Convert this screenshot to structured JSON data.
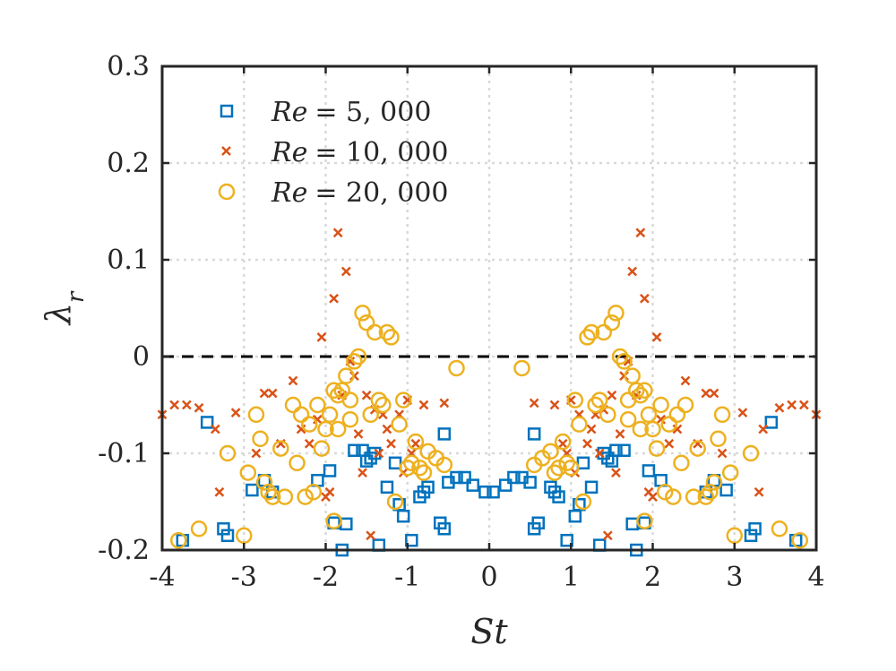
{
  "chart_data": {
    "type": "scatter",
    "title": "",
    "xlabel": "St",
    "ylabel_symbol": "λ",
    "ylabel_subscript": "r",
    "xlim": [
      -4,
      4
    ],
    "ylim": [
      -0.2,
      0.3
    ],
    "x_ticks": [
      -4,
      -3,
      -2,
      -1,
      0,
      1,
      2,
      3,
      4
    ],
    "x_tick_labels": [
      "-4",
      "-3",
      "-2",
      "-1",
      "0",
      "1",
      "2",
      "3",
      "4"
    ],
    "y_ticks": [
      -0.2,
      -0.1,
      0,
      0.1,
      0.2,
      0.3
    ],
    "y_tick_labels": [
      "-0.2",
      "-0.1",
      "0",
      "0.1",
      "0.2",
      "0.3"
    ],
    "grid": true,
    "reference_line": {
      "y": 0,
      "style": "dashed",
      "color": "#000000"
    },
    "legend_position": "top-left",
    "series": [
      {
        "name": "Re = 5,000",
        "legend_prefix": "Re",
        "legend_value": "= 5, 000",
        "marker": "square",
        "color": "#0072BD",
        "points": [
          [
            -3.75,
            -0.19
          ],
          [
            -3.45,
            -0.068
          ],
          [
            -3.25,
            -0.178
          ],
          [
            -3.2,
            -0.185
          ],
          [
            -2.9,
            -0.138
          ],
          [
            -2.75,
            -0.128
          ],
          [
            -2.65,
            -0.14
          ],
          [
            -2.1,
            -0.128
          ],
          [
            -1.95,
            -0.118
          ],
          [
            -1.9,
            -0.172
          ],
          [
            -1.8,
            -0.2
          ],
          [
            -1.75,
            -0.173
          ],
          [
            -1.65,
            -0.097
          ],
          [
            -1.55,
            -0.097
          ],
          [
            -1.5,
            -0.108
          ],
          [
            -1.45,
            -0.105
          ],
          [
            -1.4,
            -0.1
          ],
          [
            -1.35,
            -0.195
          ],
          [
            -1.25,
            -0.135
          ],
          [
            -1.15,
            -0.11
          ],
          [
            -1.1,
            -0.153
          ],
          [
            -1.05,
            -0.165
          ],
          [
            -0.95,
            -0.19
          ],
          [
            -0.85,
            -0.145
          ],
          [
            -0.8,
            -0.14
          ],
          [
            -0.75,
            -0.135
          ],
          [
            -0.6,
            -0.172
          ],
          [
            -0.55,
            -0.178
          ],
          [
            -0.5,
            -0.13
          ],
          [
            -0.4,
            -0.125
          ],
          [
            -0.3,
            -0.125
          ],
          [
            -0.2,
            -0.133
          ],
          [
            -0.05,
            -0.14
          ],
          [
            0.05,
            -0.14
          ],
          [
            0.2,
            -0.133
          ],
          [
            0.3,
            -0.125
          ],
          [
            0.4,
            -0.125
          ],
          [
            0.5,
            -0.13
          ],
          [
            0.55,
            -0.178
          ],
          [
            0.6,
            -0.172
          ],
          [
            0.75,
            -0.135
          ],
          [
            0.8,
            -0.14
          ],
          [
            0.85,
            -0.145
          ],
          [
            0.95,
            -0.19
          ],
          [
            1.05,
            -0.165
          ],
          [
            1.1,
            -0.153
          ],
          [
            1.15,
            -0.11
          ],
          [
            1.25,
            -0.135
          ],
          [
            1.35,
            -0.195
          ],
          [
            1.4,
            -0.1
          ],
          [
            1.45,
            -0.105
          ],
          [
            1.5,
            -0.108
          ],
          [
            1.55,
            -0.097
          ],
          [
            1.65,
            -0.097
          ],
          [
            1.75,
            -0.173
          ],
          [
            1.8,
            -0.2
          ],
          [
            1.9,
            -0.172
          ],
          [
            1.95,
            -0.118
          ],
          [
            2.1,
            -0.128
          ],
          [
            2.65,
            -0.14
          ],
          [
            2.75,
            -0.128
          ],
          [
            2.9,
            -0.138
          ],
          [
            3.2,
            -0.185
          ],
          [
            3.25,
            -0.178
          ],
          [
            3.45,
            -0.068
          ],
          [
            3.75,
            -0.19
          ],
          [
            -0.55,
            -0.08
          ],
          [
            0.55,
            -0.08
          ]
        ]
      },
      {
        "name": "Re = 10,000",
        "legend_prefix": "Re",
        "legend_value": "= 10, 000",
        "marker": "x",
        "color": "#D95319",
        "points": [
          [
            -4.0,
            -0.06
          ],
          [
            -3.85,
            -0.05
          ],
          [
            -3.7,
            -0.05
          ],
          [
            -3.55,
            -0.053
          ],
          [
            -3.35,
            -0.075
          ],
          [
            -3.3,
            -0.14
          ],
          [
            -3.1,
            -0.058
          ],
          [
            -2.85,
            -0.1
          ],
          [
            -2.75,
            -0.038
          ],
          [
            -2.65,
            -0.038
          ],
          [
            -2.55,
            -0.09
          ],
          [
            -2.4,
            -0.025
          ],
          [
            -2.3,
            -0.075
          ],
          [
            -2.2,
            -0.09
          ],
          [
            -2.1,
            -0.065
          ],
          [
            -2.05,
            0.02
          ],
          [
            -2.0,
            -0.145
          ],
          [
            -1.95,
            -0.14
          ],
          [
            -1.9,
            0.06
          ],
          [
            -1.85,
            0.128
          ],
          [
            -1.8,
            -0.04
          ],
          [
            -1.75,
            0.088
          ],
          [
            -1.7,
            -0.005
          ],
          [
            -1.65,
            -0.02
          ],
          [
            -1.6,
            -0.08
          ],
          [
            -1.55,
            -0.12
          ],
          [
            -1.5,
            -0.04
          ],
          [
            -1.45,
            -0.185
          ],
          [
            -1.4,
            -0.055
          ],
          [
            -1.35,
            -0.1
          ],
          [
            -1.3,
            -0.06
          ],
          [
            -1.25,
            -0.075
          ],
          [
            -1.2,
            -0.09
          ],
          [
            -1.1,
            -0.06
          ],
          [
            -1.05,
            -0.12
          ],
          [
            -1.0,
            -0.045
          ],
          [
            -0.95,
            -0.1
          ],
          [
            -0.9,
            -0.09
          ],
          [
            -0.8,
            -0.05
          ],
          [
            -0.55,
            -0.048
          ],
          [
            4.0,
            -0.06
          ],
          [
            3.85,
            -0.05
          ],
          [
            3.7,
            -0.05
          ],
          [
            3.55,
            -0.053
          ],
          [
            3.35,
            -0.075
          ],
          [
            3.3,
            -0.14
          ],
          [
            3.1,
            -0.058
          ],
          [
            2.85,
            -0.1
          ],
          [
            2.75,
            -0.038
          ],
          [
            2.65,
            -0.038
          ],
          [
            2.55,
            -0.09
          ],
          [
            2.4,
            -0.025
          ],
          [
            2.3,
            -0.075
          ],
          [
            2.2,
            -0.09
          ],
          [
            2.1,
            -0.065
          ],
          [
            2.05,
            0.02
          ],
          [
            2.0,
            -0.145
          ],
          [
            1.95,
            -0.14
          ],
          [
            1.9,
            0.06
          ],
          [
            1.85,
            0.128
          ],
          [
            1.8,
            -0.04
          ],
          [
            1.75,
            0.088
          ],
          [
            1.7,
            -0.005
          ],
          [
            1.65,
            -0.02
          ],
          [
            1.6,
            -0.08
          ],
          [
            1.55,
            -0.12
          ],
          [
            1.5,
            -0.04
          ],
          [
            1.45,
            -0.185
          ],
          [
            1.4,
            -0.055
          ],
          [
            1.35,
            -0.1
          ],
          [
            1.3,
            -0.06
          ],
          [
            1.25,
            -0.075
          ],
          [
            1.2,
            -0.09
          ],
          [
            1.1,
            -0.06
          ],
          [
            1.05,
            -0.12
          ],
          [
            1.0,
            -0.045
          ],
          [
            0.95,
            -0.1
          ],
          [
            0.9,
            -0.09
          ],
          [
            0.8,
            -0.05
          ],
          [
            0.55,
            -0.048
          ]
        ]
      },
      {
        "name": "Re = 20,000",
        "legend_prefix": "Re",
        "legend_value": "= 20, 000",
        "marker": "circle",
        "color": "#EDB120",
        "points": [
          [
            -3.8,
            -0.19
          ],
          [
            -3.55,
            -0.178
          ],
          [
            -3.2,
            -0.1
          ],
          [
            -3.0,
            -0.185
          ],
          [
            -2.95,
            -0.12
          ],
          [
            -2.85,
            -0.06
          ],
          [
            -2.8,
            -0.085
          ],
          [
            -2.75,
            -0.13
          ],
          [
            -2.7,
            -0.14
          ],
          [
            -2.65,
            -0.145
          ],
          [
            -2.55,
            -0.095
          ],
          [
            -2.5,
            -0.145
          ],
          [
            -2.4,
            -0.05
          ],
          [
            -2.35,
            -0.11
          ],
          [
            -2.3,
            -0.06
          ],
          [
            -2.25,
            -0.145
          ],
          [
            -2.2,
            -0.07
          ],
          [
            -2.15,
            -0.14
          ],
          [
            -2.1,
            -0.05
          ],
          [
            -2.05,
            -0.095
          ],
          [
            -2.0,
            -0.075
          ],
          [
            -1.95,
            -0.06
          ],
          [
            -1.9,
            -0.17
          ],
          [
            -1.85,
            -0.075
          ],
          [
            -1.8,
            -0.035
          ],
          [
            -1.75,
            -0.02
          ],
          [
            -1.7,
            -0.065
          ],
          [
            -1.65,
            -0.005
          ],
          [
            -1.6,
            0.0
          ],
          [
            -1.55,
            0.045
          ],
          [
            -1.5,
            0.035
          ],
          [
            -1.45,
            -0.06
          ],
          [
            -1.4,
            0.025
          ],
          [
            -1.35,
            -0.045
          ],
          [
            -1.3,
            -0.05
          ],
          [
            -1.25,
            0.025
          ],
          [
            -1.2,
            0.02
          ],
          [
            -1.15,
            -0.15
          ],
          [
            -1.1,
            -0.07
          ],
          [
            -1.05,
            -0.045
          ],
          [
            -1.0,
            -0.115
          ],
          [
            -0.95,
            -0.11
          ],
          [
            -0.9,
            -0.088
          ],
          [
            -0.85,
            -0.115
          ],
          [
            -0.8,
            -0.12
          ],
          [
            -0.75,
            -0.098
          ],
          [
            -0.65,
            -0.105
          ],
          [
            -0.55,
            -0.112
          ],
          [
            -0.4,
            -0.012
          ],
          [
            -1.9,
            -0.035
          ],
          [
            -1.7,
            -0.045
          ],
          [
            -1.85,
            -0.04
          ],
          [
            3.8,
            -0.19
          ],
          [
            3.55,
            -0.178
          ],
          [
            3.2,
            -0.1
          ],
          [
            3.0,
            -0.185
          ],
          [
            2.95,
            -0.12
          ],
          [
            2.85,
            -0.06
          ],
          [
            2.8,
            -0.085
          ],
          [
            2.75,
            -0.13
          ],
          [
            2.7,
            -0.14
          ],
          [
            2.65,
            -0.145
          ],
          [
            2.55,
            -0.095
          ],
          [
            2.5,
            -0.145
          ],
          [
            2.4,
            -0.05
          ],
          [
            2.35,
            -0.11
          ],
          [
            2.3,
            -0.06
          ],
          [
            2.25,
            -0.145
          ],
          [
            2.2,
            -0.07
          ],
          [
            2.15,
            -0.14
          ],
          [
            2.1,
            -0.05
          ],
          [
            2.05,
            -0.095
          ],
          [
            2.0,
            -0.075
          ],
          [
            1.95,
            -0.06
          ],
          [
            1.9,
            -0.17
          ],
          [
            1.85,
            -0.075
          ],
          [
            1.8,
            -0.035
          ],
          [
            1.75,
            -0.02
          ],
          [
            1.7,
            -0.065
          ],
          [
            1.65,
            -0.005
          ],
          [
            1.6,
            0.0
          ],
          [
            1.55,
            0.045
          ],
          [
            1.5,
            0.035
          ],
          [
            1.45,
            -0.06
          ],
          [
            1.4,
            0.025
          ],
          [
            1.35,
            -0.045
          ],
          [
            1.3,
            -0.05
          ],
          [
            1.25,
            0.025
          ],
          [
            1.2,
            0.02
          ],
          [
            1.15,
            -0.15
          ],
          [
            1.1,
            -0.07
          ],
          [
            1.05,
            -0.045
          ],
          [
            1.0,
            -0.115
          ],
          [
            0.95,
            -0.11
          ],
          [
            0.9,
            -0.088
          ],
          [
            0.85,
            -0.115
          ],
          [
            0.8,
            -0.12
          ],
          [
            0.75,
            -0.098
          ],
          [
            0.65,
            -0.105
          ],
          [
            0.55,
            -0.112
          ],
          [
            0.4,
            -0.012
          ],
          [
            1.9,
            -0.035
          ],
          [
            1.7,
            -0.045
          ],
          [
            1.85,
            -0.04
          ]
        ]
      }
    ]
  }
}
